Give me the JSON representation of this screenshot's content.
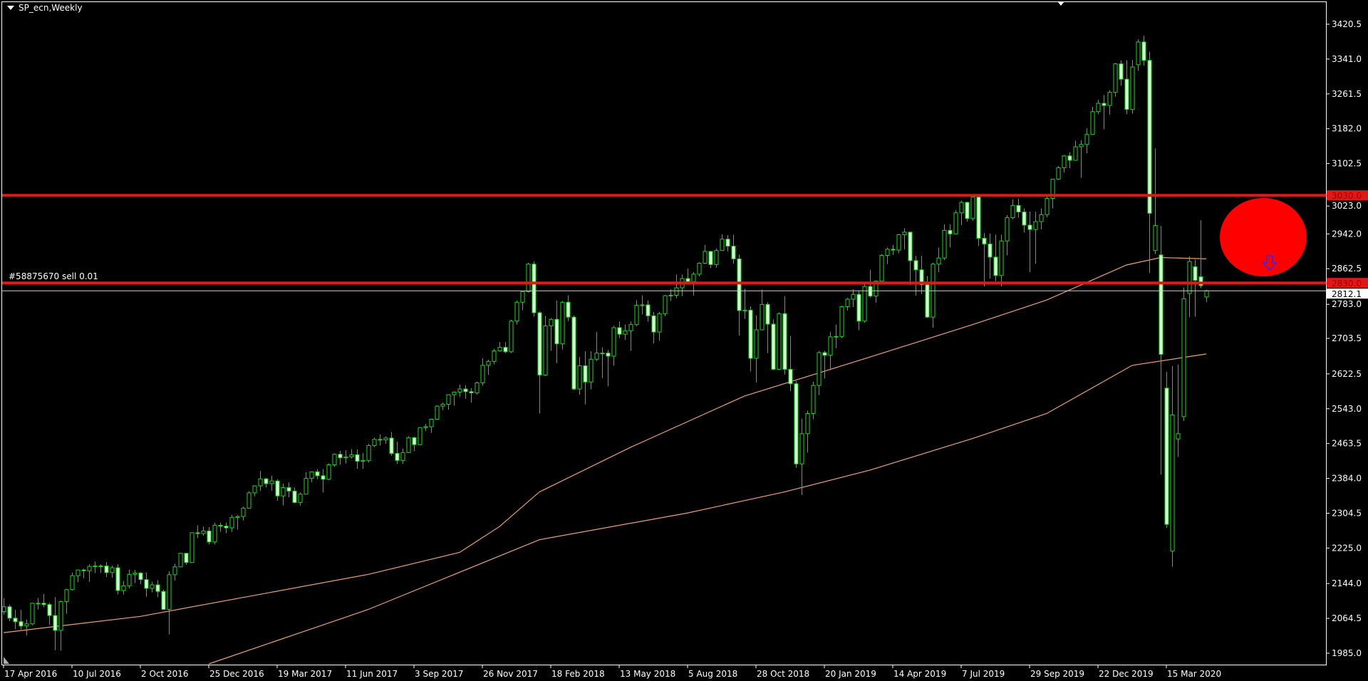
{
  "chart_title": "SP_ecn,Weekly",
  "order_label": "#58875670 sell 0.01",
  "colors": {
    "background": "#000000",
    "bull_outline": "#1fd21f",
    "bear_fill": "#ccffcc",
    "moving_average": "#e8a07a",
    "level_line": "#e01818",
    "current_price_line": "#d0d0d0",
    "marker_circle": "#ff0000",
    "arrow": "#2a2aff"
  },
  "chart_data": {
    "type": "candlestick",
    "timeframe": "Weekly",
    "ylim": [
      1960,
      3440
    ],
    "price_ticks": [
      "3420.5",
      "3341.0",
      "3261.5",
      "3182.0",
      "3102.5",
      "3023.0",
      "2942.0",
      "2862.5",
      "2783.0",
      "2703.5",
      "2622.5",
      "2543.0",
      "2463.5",
      "2384.0",
      "2304.5",
      "2225.0",
      "2144.0",
      "2064.5",
      "1985.0"
    ],
    "date_ticks": [
      {
        "week": 0,
        "label": "17 Apr 2016"
      },
      {
        "week": 12,
        "label": "10 Jul 2016"
      },
      {
        "week": 24,
        "label": "2 Oct 2016"
      },
      {
        "week": 36,
        "label": "25 Dec 2016"
      },
      {
        "week": 48,
        "label": "19 Mar 2017"
      },
      {
        "week": 60,
        "label": "11 Jun 2017"
      },
      {
        "week": 72,
        "label": "3 Sep 2017"
      },
      {
        "week": 84,
        "label": "26 Nov 2017"
      },
      {
        "week": 96,
        "label": "18 Feb 2018"
      },
      {
        "week": 108,
        "label": "13 May 2018"
      },
      {
        "week": 120,
        "label": "5 Aug 2018"
      },
      {
        "week": 132,
        "label": "28 Oct 2018"
      },
      {
        "week": 144,
        "label": "20 Jan 2019"
      },
      {
        "week": 156,
        "label": "14 Apr 2019"
      },
      {
        "week": 168,
        "label": "7 Jul 2019"
      },
      {
        "week": 180,
        "label": "29 Sep 2019"
      },
      {
        "week": 192,
        "label": "22 Dec 2019"
      },
      {
        "week": 204,
        "label": "15 Mar 2020"
      }
    ],
    "horizontal_levels": [
      {
        "price": 3030.0,
        "label": "3030.0"
      },
      {
        "price": 2830.0,
        "label": "2830.0"
      }
    ],
    "current_price": {
      "price": 2812.1,
      "label": "2812.1"
    },
    "moving_averages": [
      {
        "points": [
          [
            0,
            2032
          ],
          [
            24,
            2069
          ],
          [
            64,
            2165
          ],
          [
            80,
            2215
          ],
          [
            87,
            2274
          ],
          [
            94,
            2353
          ],
          [
            110,
            2455
          ],
          [
            130,
            2572
          ],
          [
            152,
            2661
          ],
          [
            170,
            2735
          ],
          [
            183,
            2791
          ],
          [
            197,
            2871
          ],
          [
            203,
            2888
          ],
          [
            211,
            2885
          ]
        ]
      },
      {
        "points": [
          [
            36,
            1955
          ],
          [
            64,
            2085
          ],
          [
            94,
            2244
          ],
          [
            120,
            2305
          ],
          [
            137,
            2353
          ],
          [
            152,
            2403
          ],
          [
            170,
            2475
          ],
          [
            183,
            2532
          ],
          [
            198,
            2642
          ],
          [
            211,
            2668
          ]
        ]
      }
    ],
    "ohlc": [
      [
        2080,
        2111,
        2073,
        2091
      ],
      [
        2091,
        2096,
        2058,
        2065
      ],
      [
        2065,
        2084,
        2040,
        2057
      ],
      [
        2057,
        2084,
        2039,
        2047
      ],
      [
        2047,
        2062,
        2025,
        2052
      ],
      [
        2052,
        2100,
        2049,
        2099
      ],
      [
        2099,
        2111,
        2085,
        2099
      ],
      [
        2099,
        2120,
        2090,
        2096
      ],
      [
        2096,
        2100,
        2050,
        2071
      ],
      [
        2071,
        2113,
        1992,
        2037
      ],
      [
        2037,
        2105,
        1991,
        2103
      ],
      [
        2103,
        2132,
        2075,
        2130
      ],
      [
        2130,
        2169,
        2128,
        2162
      ],
      [
        2162,
        2175,
        2147,
        2175
      ],
      [
        2175,
        2178,
        2156,
        2173
      ],
      [
        2173,
        2188,
        2148,
        2183
      ],
      [
        2183,
        2194,
        2168,
        2184
      ],
      [
        2184,
        2188,
        2168,
        2184
      ],
      [
        2184,
        2193,
        2159,
        2169
      ],
      [
        2169,
        2185,
        2157,
        2180
      ],
      [
        2180,
        2188,
        2119,
        2128
      ],
      [
        2128,
        2150,
        2119,
        2139
      ],
      [
        2139,
        2176,
        2133,
        2165
      ],
      [
        2165,
        2175,
        2145,
        2168
      ],
      [
        2168,
        2170,
        2142,
        2153
      ],
      [
        2153,
        2169,
        2114,
        2133
      ],
      [
        2133,
        2148,
        2124,
        2141
      ],
      [
        2141,
        2152,
        2113,
        2126
      ],
      [
        2126,
        2130,
        2084,
        2085
      ],
      [
        2085,
        2172,
        2028,
        2164
      ],
      [
        2164,
        2189,
        2151,
        2182
      ],
      [
        2182,
        2214,
        2181,
        2213
      ],
      [
        2213,
        2214,
        2187,
        2192
      ],
      [
        2192,
        2261,
        2191,
        2260
      ],
      [
        2260,
        2277,
        2248,
        2258
      ],
      [
        2258,
        2274,
        2253,
        2264
      ],
      [
        2264,
        2273,
        2233,
        2239
      ],
      [
        2239,
        2283,
        2233,
        2277
      ],
      [
        2277,
        2283,
        2262,
        2275
      ],
      [
        2275,
        2283,
        2259,
        2271
      ],
      [
        2271,
        2301,
        2262,
        2295
      ],
      [
        2295,
        2300,
        2267,
        2297
      ],
      [
        2297,
        2320,
        2288,
        2316
      ],
      [
        2316,
        2355,
        2315,
        2351
      ],
      [
        2351,
        2368,
        2343,
        2367
      ],
      [
        2367,
        2401,
        2355,
        2383
      ],
      [
        2383,
        2385,
        2363,
        2372
      ],
      [
        2372,
        2390,
        2356,
        2378
      ],
      [
        2378,
        2382,
        2333,
        2344
      ],
      [
        2344,
        2372,
        2322,
        2363
      ],
      [
        2363,
        2375,
        2341,
        2355
      ],
      [
        2355,
        2363,
        2327,
        2329
      ],
      [
        2329,
        2352,
        2322,
        2348
      ],
      [
        2348,
        2398,
        2347,
        2384
      ],
      [
        2384,
        2400,
        2375,
        2399
      ],
      [
        2399,
        2405,
        2382,
        2390
      ],
      [
        2390,
        2405,
        2352,
        2382
      ],
      [
        2382,
        2418,
        2380,
        2415
      ],
      [
        2415,
        2441,
        2410,
        2439
      ],
      [
        2439,
        2447,
        2415,
        2431
      ],
      [
        2431,
        2448,
        2418,
        2433
      ],
      [
        2433,
        2451,
        2429,
        2438
      ],
      [
        2438,
        2450,
        2406,
        2423
      ],
      [
        2423,
        2442,
        2406,
        2425
      ],
      [
        2425,
        2463,
        2420,
        2459
      ],
      [
        2459,
        2477,
        2455,
        2473
      ],
      [
        2473,
        2484,
        2459,
        2472
      ],
      [
        2472,
        2480,
        2463,
        2476
      ],
      [
        2476,
        2490,
        2436,
        2441
      ],
      [
        2441,
        2468,
        2417,
        2425
      ],
      [
        2425,
        2452,
        2417,
        2443
      ],
      [
        2443,
        2480,
        2442,
        2477
      ],
      [
        2477,
        2479,
        2446,
        2461
      ],
      [
        2461,
        2500,
        2460,
        2500
      ],
      [
        2500,
        2508,
        2492,
        2502
      ],
      [
        2502,
        2520,
        2488,
        2519
      ],
      [
        2519,
        2551,
        2518,
        2549
      ],
      [
        2549,
        2557,
        2540,
        2553
      ],
      [
        2553,
        2576,
        2541,
        2575
      ],
      [
        2575,
        2582,
        2550,
        2581
      ],
      [
        2581,
        2598,
        2570,
        2588
      ],
      [
        2588,
        2597,
        2566,
        2582
      ],
      [
        2582,
        2590,
        2557,
        2579
      ],
      [
        2579,
        2605,
        2575,
        2602
      ],
      [
        2602,
        2658,
        2596,
        2642
      ],
      [
        2642,
        2655,
        2620,
        2651
      ],
      [
        2651,
        2680,
        2644,
        2675
      ],
      [
        2675,
        2695,
        2673,
        2683
      ],
      [
        2683,
        2695,
        2670,
        2673
      ],
      [
        2673,
        2746,
        2670,
        2743
      ],
      [
        2743,
        2790,
        2735,
        2786
      ],
      [
        2786,
        2811,
        2768,
        2810
      ],
      [
        2810,
        2876,
        2808,
        2873
      ],
      [
        2873,
        2879,
        2753,
        2762
      ],
      [
        2762,
        2765,
        2532,
        2620
      ],
      [
        2620,
        2755,
        2617,
        2732
      ],
      [
        2732,
        2750,
        2675,
        2747
      ],
      [
        2747,
        2790,
        2647,
        2691
      ],
      [
        2691,
        2789,
        2678,
        2786
      ],
      [
        2786,
        2802,
        2743,
        2752
      ],
      [
        2752,
        2756,
        2585,
        2588
      ],
      [
        2588,
        2661,
        2575,
        2641
      ],
      [
        2641,
        2674,
        2553,
        2604
      ],
      [
        2604,
        2674,
        2587,
        2656
      ],
      [
        2656,
        2718,
        2652,
        2670
      ],
      [
        2670,
        2683,
        2613,
        2670
      ],
      [
        2670,
        2677,
        2594,
        2663
      ],
      [
        2663,
        2732,
        2641,
        2728
      ],
      [
        2728,
        2742,
        2704,
        2713
      ],
      [
        2713,
        2735,
        2700,
        2721
      ],
      [
        2721,
        2742,
        2675,
        2735
      ],
      [
        2735,
        2791,
        2731,
        2779
      ],
      [
        2779,
        2802,
        2758,
        2780
      ],
      [
        2780,
        2790,
        2742,
        2755
      ],
      [
        2755,
        2764,
        2692,
        2718
      ],
      [
        2718,
        2764,
        2698,
        2760
      ],
      [
        2760,
        2803,
        2754,
        2801
      ],
      [
        2801,
        2816,
        2789,
        2802
      ],
      [
        2802,
        2849,
        2795,
        2819
      ],
      [
        2819,
        2849,
        2800,
        2840
      ],
      [
        2840,
        2863,
        2830,
        2833
      ],
      [
        2833,
        2855,
        2801,
        2850
      ],
      [
        2850,
        2877,
        2845,
        2875
      ],
      [
        2875,
        2917,
        2873,
        2902
      ],
      [
        2902,
        2903,
        2864,
        2872
      ],
      [
        2872,
        2909,
        2865,
        2904
      ],
      [
        2904,
        2941,
        2903,
        2930
      ],
      [
        2930,
        2939,
        2902,
        2914
      ],
      [
        2914,
        2940,
        2874,
        2885
      ],
      [
        2885,
        2895,
        2710,
        2767
      ],
      [
        2767,
        2817,
        2748,
        2768
      ],
      [
        2768,
        2777,
        2628,
        2658
      ],
      [
        2658,
        2756,
        2603,
        2723
      ],
      [
        2723,
        2815,
        2722,
        2781
      ],
      [
        2781,
        2786,
        2670,
        2736
      ],
      [
        2736,
        2747,
        2631,
        2633
      ],
      [
        2633,
        2763,
        2631,
        2760
      ],
      [
        2760,
        2800,
        2621,
        2633
      ],
      [
        2633,
        2709,
        2583,
        2600
      ],
      [
        2600,
        2606,
        2408,
        2417
      ],
      [
        2417,
        2520,
        2346,
        2486
      ],
      [
        2486,
        2539,
        2443,
        2532
      ],
      [
        2532,
        2605,
        2519,
        2596
      ],
      [
        2596,
        2675,
        2574,
        2671
      ],
      [
        2671,
        2675,
        2612,
        2665
      ],
      [
        2665,
        2718,
        2631,
        2707
      ],
      [
        2707,
        2735,
        2681,
        2708
      ],
      [
        2708,
        2778,
        2704,
        2776
      ],
      [
        2776,
        2796,
        2767,
        2793
      ],
      [
        2793,
        2816,
        2775,
        2804
      ],
      [
        2804,
        2813,
        2722,
        2743
      ],
      [
        2743,
        2830,
        2739,
        2822
      ],
      [
        2822,
        2860,
        2796,
        2800
      ],
      [
        2800,
        2836,
        2785,
        2834
      ],
      [
        2834,
        2896,
        2834,
        2893
      ],
      [
        2893,
        2911,
        2873,
        2907
      ],
      [
        2907,
        2917,
        2894,
        2905
      ],
      [
        2905,
        2942,
        2898,
        2940
      ],
      [
        2940,
        2955,
        2907,
        2946
      ],
      [
        2946,
        2946,
        2825,
        2881
      ],
      [
        2881,
        2892,
        2801,
        2860
      ],
      [
        2860,
        2892,
        2805,
        2826
      ],
      [
        2826,
        2846,
        2750,
        2752
      ],
      [
        2752,
        2876,
        2728,
        2873
      ],
      [
        2873,
        2911,
        2855,
        2887
      ],
      [
        2887,
        2964,
        2882,
        2950
      ],
      [
        2950,
        2964,
        2911,
        2942
      ],
      [
        2942,
        2996,
        2942,
        2990
      ],
      [
        2990,
        3018,
        2962,
        3014
      ],
      [
        3014,
        3015,
        2970,
        2977
      ],
      [
        2977,
        3028,
        2972,
        3026
      ],
      [
        3026,
        3028,
        2914,
        2932
      ],
      [
        2932,
        2944,
        2822,
        2919
      ],
      [
        2919,
        2943,
        2840,
        2889
      ],
      [
        2889,
        2940,
        2834,
        2847
      ],
      [
        2847,
        2940,
        2822,
        2926
      ],
      [
        2926,
        2985,
        2893,
        2979
      ],
      [
        2979,
        3021,
        2975,
        3007
      ],
      [
        3007,
        3022,
        2979,
        2992
      ],
      [
        2992,
        3000,
        2945,
        2962
      ],
      [
        2962,
        2993,
        2855,
        2952
      ],
      [
        2952,
        2993,
        2874,
        2970
      ],
      [
        2970,
        3000,
        2952,
        2986
      ],
      [
        2986,
        3028,
        2980,
        3023
      ],
      [
        3023,
        3067,
        3000,
        3067
      ],
      [
        3067,
        3097,
        3065,
        3093
      ],
      [
        3093,
        3122,
        3082,
        3120
      ],
      [
        3120,
        3128,
        3092,
        3110
      ],
      [
        3110,
        3155,
        3109,
        3141
      ],
      [
        3141,
        3156,
        3070,
        3146
      ],
      [
        3146,
        3183,
        3126,
        3169
      ],
      [
        3169,
        3232,
        3168,
        3221
      ],
      [
        3221,
        3248,
        3215,
        3240
      ],
      [
        3240,
        3259,
        3181,
        3235
      ],
      [
        3235,
        3270,
        3214,
        3265
      ],
      [
        3265,
        3332,
        3255,
        3330
      ],
      [
        3330,
        3338,
        3280,
        3295
      ],
      [
        3295,
        3338,
        3215,
        3226
      ],
      [
        3226,
        3339,
        3216,
        3323
      ],
      [
        3328,
        3386,
        3314,
        3380
      ],
      [
        3380,
        3394,
        3326,
        3338
      ],
      [
        3338,
        3358,
        2853,
        2989
      ],
      [
        2904,
        3137,
        2896,
        2961
      ],
      [
        2894,
        2960,
        2393,
        2667
      ],
      [
        2590,
        2627,
        2271,
        2279
      ],
      [
        2218,
        2640,
        2182,
        2529
      ],
      [
        2474,
        2644,
        2433,
        2486
      ],
      [
        2525,
        2820,
        2515,
        2794
      ],
      [
        2806,
        2891,
        2752,
        2879
      ],
      [
        2867,
        2883,
        2753,
        2836
      ],
      [
        2844,
        2973,
        2818,
        2824
      ],
      [
        2798,
        2815,
        2786,
        2812
      ]
    ]
  }
}
